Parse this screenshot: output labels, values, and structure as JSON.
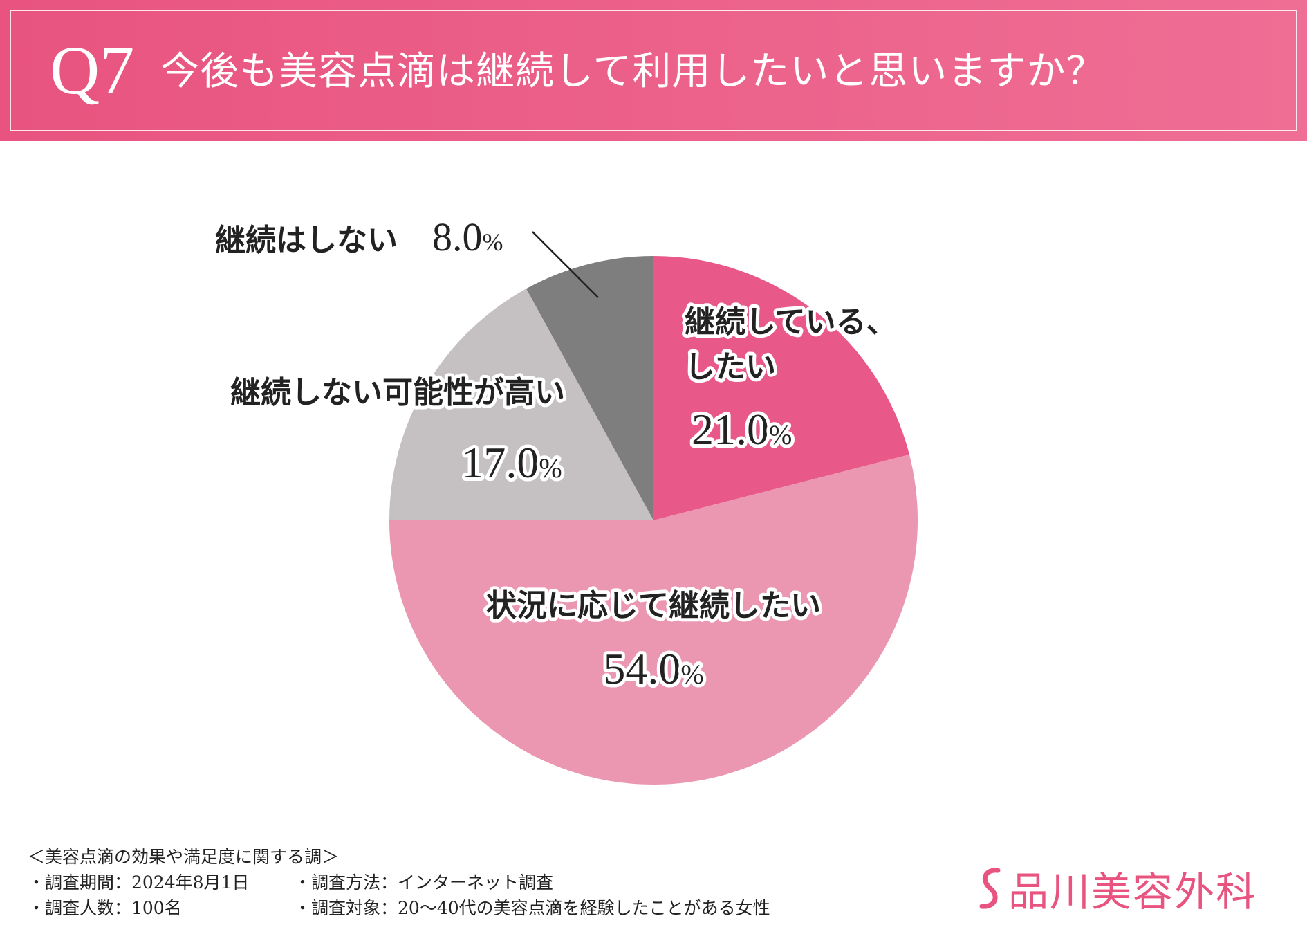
{
  "header": {
    "q_number": "Q7",
    "question": "今後も美容点滴は継続して利用したいと思いますか？"
  },
  "chart_data": {
    "type": "pie",
    "title": "",
    "unit": "%",
    "slices": [
      {
        "label": "継続している、\nしたい",
        "value": 21.0,
        "display": "21.0",
        "color": "#e8598a"
      },
      {
        "label": "状況に応じて継続したい",
        "value": 54.0,
        "display": "54.0",
        "color": "#eb97b1"
      },
      {
        "label": "継続しない可能性が高い",
        "value": 17.0,
        "display": "17.0",
        "color": "#c5c1c2"
      },
      {
        "label": "継続はしない",
        "value": 8.0,
        "display": "8.0",
        "color": "#7e7e7e"
      }
    ]
  },
  "footer": {
    "survey_title": "＜美容点滴の効果や満足度に関する調＞",
    "items": [
      {
        "left": "・調査期間：2024年8月1日",
        "right": "・調査方法：インターネット調査"
      },
      {
        "left": "・調査人数：100名",
        "right": "・調査対象：20〜40代の美容点滴を経験したことがある女性"
      }
    ]
  },
  "brand": {
    "name": "品川美容外科",
    "color": "#e8547f",
    "logo_icon": "s-mark-icon"
  }
}
